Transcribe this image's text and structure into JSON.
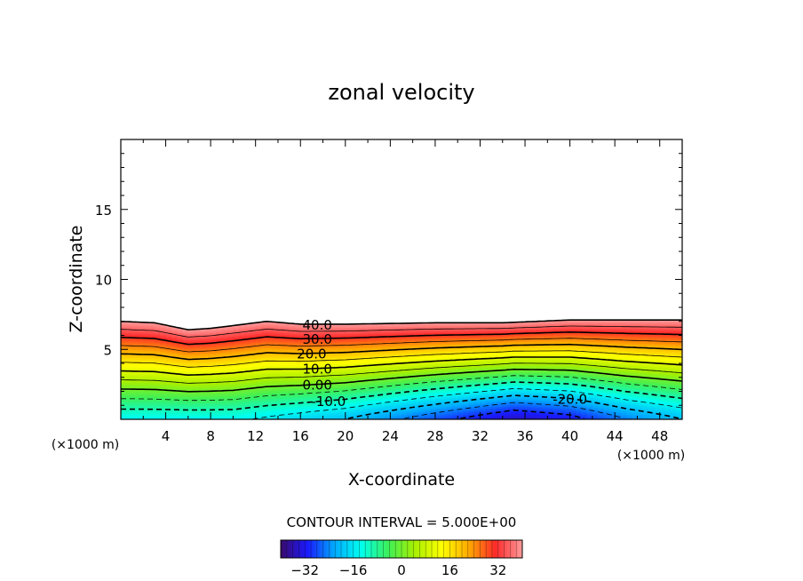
{
  "chart_data": {
    "type": "contour",
    "title": "zonal velocity",
    "xlabel": "X-coordinate",
    "ylabel": "Z-coordinate",
    "xunits_left": "(×1000 m)",
    "xunits_right": "(×1000 m)",
    "xlim": [
      0,
      50
    ],
    "ylim": [
      0,
      20
    ],
    "xticks": [
      4,
      8,
      12,
      16,
      20,
      24,
      28,
      32,
      36,
      40,
      44,
      48
    ],
    "yticks": [
      5,
      10,
      15
    ],
    "contour_interval_label": "CONTOUR INTERVAL = 5.000E+00",
    "contour_interval": 5,
    "contour_labels": [
      "40.0",
      "30.0",
      "20.0",
      "10.0",
      "0.00",
      "-10.0",
      "-20.0"
    ],
    "colorbar": {
      "min": -40,
      "max": 40,
      "ticks": [
        "-32",
        "-16",
        "0",
        "16",
        "32"
      ]
    },
    "colormap": [
      "#3a0a6a",
      "#1a1aff",
      "#00aaff",
      "#00ffee",
      "#3cf05a",
      "#a8f000",
      "#ffff00",
      "#ffaa00",
      "#ff2a2a",
      "#ff9a9a"
    ],
    "field_top_profile": [
      [
        0,
        7.0
      ],
      [
        3,
        6.9
      ],
      [
        6,
        6.4
      ],
      [
        8,
        6.5
      ],
      [
        10,
        6.7
      ],
      [
        12,
        6.9
      ],
      [
        13,
        7.0
      ],
      [
        16,
        6.8
      ],
      [
        20,
        6.8
      ],
      [
        28,
        6.9
      ],
      [
        34,
        6.9
      ],
      [
        40,
        7.1
      ],
      [
        50,
        7.1
      ]
    ],
    "velocity_bottom_profile": [
      [
        0,
        -14
      ],
      [
        10,
        -14
      ],
      [
        20,
        -20
      ],
      [
        30,
        -30
      ],
      [
        35,
        -35
      ],
      [
        40,
        -32
      ],
      [
        45,
        -25
      ],
      [
        50,
        -20
      ]
    ],
    "velocity_top": 40
  }
}
